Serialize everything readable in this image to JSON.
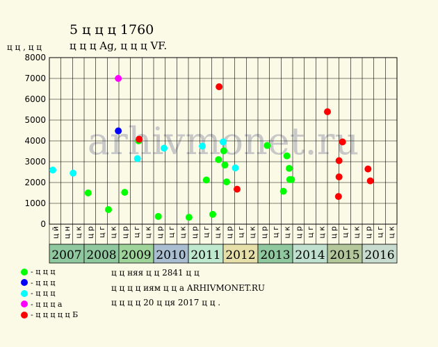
{
  "header": {
    "title": "5 ц ц ц 1760",
    "subtitle": "ц ц ц  Ag, ц ц ц  VF.",
    "y_unit": "ц ц , ц ц"
  },
  "watermark": "arhivmonet.ru",
  "legend": [
    {
      "label": "- ц ц ц",
      "color": "#00ff00"
    },
    {
      "label": "- ц ц ц",
      "color": "#0000ff"
    },
    {
      "label": "- ц ц ц",
      "color": "#00ffff"
    },
    {
      "label": "- ц ц ц а",
      "color": "#ff00ff"
    },
    {
      "label": "- ц ц ц ц ц Б",
      "color": "#ff0000"
    }
  ],
  "notes": [
    "ц ц няя ц ц  2841 ц ц",
    "ц  ц ц ц иям ц ц а  ARHIVMONET.RU",
    "ц ц ц  ц  20 ц  ця 2017 ц ц ."
  ],
  "colors": {
    "background": "#fafae6",
    "grid": "#000000",
    "watermark": "#c8c8c8"
  },
  "chart_data": {
    "type": "scatter",
    "ylim": [
      0,
      8000
    ],
    "yticks": [
      0,
      1000,
      2000,
      3000,
      4000,
      5000,
      6000,
      7000,
      8000
    ],
    "grid": true,
    "months": [
      "ц й",
      "ц н",
      "ц к",
      "ц р",
      "ц г",
      "ц к",
      "ц р",
      "ц г",
      "ц к",
      "ц р",
      "ц г",
      "ц к",
      "ц р",
      "ц г",
      "ц к",
      "ц р",
      "ц г",
      "ц к",
      "ц р",
      "ц г",
      "ц к",
      "ц р",
      "ц г",
      "ц к",
      "ц р",
      "ц г",
      "ц к",
      "ц р",
      "ц г",
      "ц к"
    ],
    "years": [
      {
        "label": "2007",
        "color": "#8fc79f"
      },
      {
        "label": "2008",
        "color": "#8fc79f"
      },
      {
        "label": "2009",
        "color": "#9ed49a"
      },
      {
        "label": "2010",
        "color": "#a9bfd1"
      },
      {
        "label": "2011",
        "color": "#bfe9cf"
      },
      {
        "label": "2012",
        "color": "#e6dfa9"
      },
      {
        "label": "2013",
        "color": "#8fc79f"
      },
      {
        "label": "2014",
        "color": "#bfe0cf"
      },
      {
        "label": "2015",
        "color": "#b3c79a"
      },
      {
        "label": "2016",
        "color": "#c7dccf"
      }
    ],
    "series": [
      {
        "color": "#00ff00",
        "points": [
          [
            3.35,
            1500
          ],
          [
            5.1,
            700
          ],
          [
            6.5,
            1530
          ],
          [
            7.7,
            4000
          ],
          [
            9.4,
            370
          ],
          [
            12.05,
            330
          ],
          [
            13.55,
            2120
          ],
          [
            14.1,
            470
          ],
          [
            14.6,
            3100
          ],
          [
            15.05,
            3520
          ],
          [
            15.15,
            2840
          ],
          [
            15.3,
            2030
          ],
          [
            18.8,
            3780
          ],
          [
            20.2,
            1580
          ],
          [
            20.5,
            3280
          ],
          [
            20.7,
            2680
          ],
          [
            20.75,
            2140
          ],
          [
            20.9,
            2140
          ]
        ]
      },
      {
        "color": "#0000ff",
        "points": [
          [
            5.95,
            4480
          ]
        ]
      },
      {
        "color": "#00ffff",
        "points": [
          [
            0.3,
            2600
          ],
          [
            2.05,
            2450
          ],
          [
            7.6,
            3150
          ],
          [
            9.9,
            3650
          ],
          [
            13.2,
            3750
          ],
          [
            15.0,
            3950
          ],
          [
            16.05,
            2700
          ]
        ]
      },
      {
        "color": "#ff00ff",
        "points": [
          [
            5.95,
            7000
          ]
        ]
      },
      {
        "color": "#ff0000",
        "points": [
          [
            7.75,
            4080
          ],
          [
            14.65,
            6600
          ],
          [
            16.2,
            1680
          ],
          [
            24.0,
            5400
          ],
          [
            24.95,
            1330
          ],
          [
            25.0,
            2270
          ],
          [
            25.0,
            3050
          ],
          [
            25.3,
            3950
          ],
          [
            27.5,
            2650
          ],
          [
            27.7,
            2080
          ]
        ]
      }
    ]
  }
}
